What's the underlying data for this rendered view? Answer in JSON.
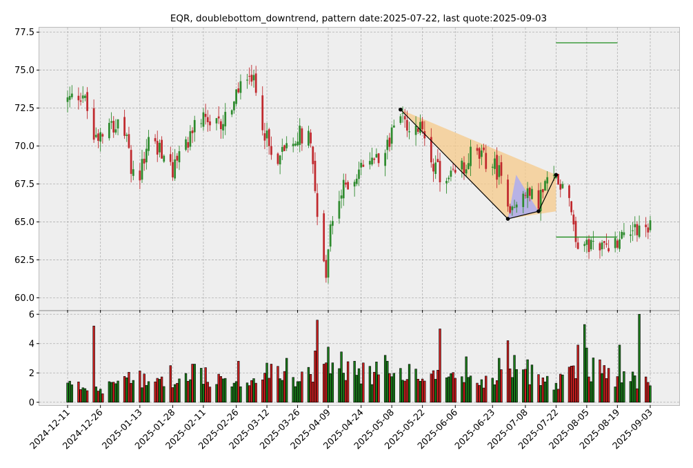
{
  "chart_data": {
    "type": "candlestick",
    "title": "EQR, doublebottom_downtrend, pattern date:2025-07-22, last quote:2025-09-03",
    "price_axis": {
      "ylim": [
        59.2,
        77.8
      ],
      "ticks": [
        "60.0",
        "62.5",
        "65.0",
        "67.5",
        "70.0",
        "72.5",
        "75.0",
        "77.5"
      ]
    },
    "volume_axis": {
      "ylim": [
        -0.2,
        6.2
      ],
      "ticks": [
        "0",
        "2",
        "4",
        "6"
      ]
    },
    "x_axis": {
      "start_date": "2024-12-11",
      "end_date": "2025-09-03",
      "tick_labels": [
        "2024-12-11",
        "2024-12-26",
        "2025-01-13",
        "2025-01-28",
        "2025-02-11",
        "2025-02-26",
        "2025-03-12",
        "2025-03-26",
        "2025-04-09",
        "2025-04-24",
        "2025-05-08",
        "2025-05-22",
        "2025-06-06",
        "2025-06-23",
        "2025-07-08",
        "2025-07-22",
        "2025-08-05",
        "2025-08-19",
        "2025-09-03"
      ]
    },
    "grid": true,
    "colors": {
      "up": "#2e8b2e",
      "down": "#c0282d",
      "up_volume": "#1a7a1a",
      "down_volume": "#cc1f1f",
      "background": "#eeeeee",
      "pattern_fill": "#f5c98a",
      "bottom_fill": "#a8aaf5",
      "level_line": "#1a8a1a"
    },
    "pattern_points": [
      {
        "date": "2025-05-12",
        "price": 72.4
      },
      {
        "date": "2025-06-30",
        "price": 65.2
      },
      {
        "date": "2025-07-14",
        "price": 65.7
      },
      {
        "date": "2025-07-22",
        "price": 68.1
      }
    ],
    "levels": [
      {
        "date_from": "2025-07-22",
        "date_to": "2025-08-19",
        "price": 76.8
      },
      {
        "date_from": "2025-07-22",
        "date_to": "2025-08-19",
        "price": 64.0
      }
    ],
    "price_anchors": [
      [
        "2024-12-11",
        73.0
      ],
      [
        "2024-12-18",
        73.5
      ],
      [
        "2024-12-23",
        70.5
      ],
      [
        "2024-12-30",
        71.8
      ],
      [
        "2025-01-06",
        70.8
      ],
      [
        "2025-01-10",
        68.0
      ],
      [
        "2025-01-14",
        68.5
      ],
      [
        "2025-01-17",
        70.5
      ],
      [
        "2025-01-24",
        69.5
      ],
      [
        "2025-01-28",
        68.3
      ],
      [
        "2025-02-04",
        70.5
      ],
      [
        "2025-02-10",
        71.8
      ],
      [
        "2025-02-14",
        71.0
      ],
      [
        "2025-02-19",
        71.5
      ],
      [
        "2025-02-26",
        73.2
      ],
      [
        "2025-03-04",
        75.2
      ],
      [
        "2025-03-07",
        73.5
      ],
      [
        "2025-03-11",
        71.0
      ],
      [
        "2025-03-14",
        69.2
      ],
      [
        "2025-03-18",
        69.5
      ],
      [
        "2025-03-21",
        70.3
      ],
      [
        "2025-03-26",
        70.8
      ],
      [
        "2025-04-01",
        70.8
      ],
      [
        "2025-04-03",
        67.0
      ],
      [
        "2025-04-08",
        61.5
      ],
      [
        "2025-04-10",
        64.5
      ],
      [
        "2025-04-14",
        66.5
      ],
      [
        "2025-04-17",
        67.5
      ],
      [
        "2025-04-22",
        68.0
      ],
      [
        "2025-04-28",
        69.0
      ],
      [
        "2025-05-02",
        69.5
      ],
      [
        "2025-05-07",
        70.5
      ],
      [
        "2025-05-12",
        72.2
      ],
      [
        "2025-05-16",
        70.5
      ],
      [
        "2025-05-20",
        71.2
      ],
      [
        "2025-05-23",
        70.8
      ],
      [
        "2025-05-28",
        68.5
      ],
      [
        "2025-06-02",
        67.5
      ],
      [
        "2025-06-09",
        68.5
      ],
      [
        "2025-06-13",
        69.5
      ],
      [
        "2025-06-18",
        69.2
      ],
      [
        "2025-06-23",
        68.8
      ],
      [
        "2025-06-27",
        68.0
      ],
      [
        "2025-07-01",
        66.2
      ],
      [
        "2025-07-07",
        66.8
      ],
      [
        "2025-07-14",
        66.5
      ],
      [
        "2025-07-18",
        67.5
      ],
      [
        "2025-07-22",
        68.0
      ],
      [
        "2025-07-28",
        67.0
      ],
      [
        "2025-07-31",
        63.8
      ],
      [
        "2025-08-05",
        63.2
      ],
      [
        "2025-08-08",
        63.8
      ],
      [
        "2025-08-12",
        63.2
      ],
      [
        "2025-08-15",
        63.5
      ],
      [
        "2025-08-19",
        63.8
      ],
      [
        "2025-08-25",
        64.8
      ],
      [
        "2025-09-03",
        64.5
      ]
    ],
    "volume_anchors": [
      [
        "2024-12-11",
        1.2
      ],
      [
        "2024-12-26",
        1.0
      ],
      [
        "2025-01-13",
        1.8
      ],
      [
        "2025-01-28",
        1.6
      ],
      [
        "2025-02-11",
        1.8
      ],
      [
        "2025-02-26",
        1.2
      ],
      [
        "2025-03-12",
        2.0
      ],
      [
        "2025-03-26",
        1.5
      ],
      [
        "2025-04-09",
        3.0
      ],
      [
        "2025-04-24",
        2.0
      ],
      [
        "2025-05-08",
        2.5
      ],
      [
        "2025-05-22",
        1.8
      ],
      [
        "2025-06-06",
        1.5
      ],
      [
        "2025-06-23",
        1.6
      ],
      [
        "2025-07-08",
        2.2
      ],
      [
        "2025-07-22",
        1.4
      ],
      [
        "2025-08-05",
        2.5
      ],
      [
        "2025-08-19",
        1.8
      ],
      [
        "2025-09-03",
        1.3
      ]
    ],
    "volume_spikes": [
      [
        "2024-12-23",
        5.2
      ],
      [
        "2025-01-27",
        2.5
      ],
      [
        "2025-02-06",
        2.6
      ],
      [
        "2025-02-07",
        2.6
      ],
      [
        "2025-02-27",
        2.8
      ],
      [
        "2025-03-14",
        2.6
      ],
      [
        "2025-03-21",
        3.0
      ],
      [
        "2025-04-03",
        3.5
      ],
      [
        "2025-04-04",
        5.6
      ],
      [
        "2025-04-07",
        2.6
      ],
      [
        "2025-04-21",
        2.8
      ],
      [
        "2025-05-05",
        3.2
      ],
      [
        "2025-05-06",
        2.8
      ],
      [
        "2025-05-30",
        5.0
      ],
      [
        "2025-06-11",
        3.1
      ],
      [
        "2025-06-26",
        3.0
      ],
      [
        "2025-06-30",
        4.2
      ],
      [
        "2025-07-03",
        3.2
      ],
      [
        "2025-07-09",
        2.9
      ],
      [
        "2025-08-01",
        3.9
      ],
      [
        "2025-08-04",
        5.3
      ],
      [
        "2025-08-05",
        3.7
      ],
      [
        "2025-08-20",
        3.9
      ],
      [
        "2025-08-29",
        6.0
      ]
    ]
  }
}
